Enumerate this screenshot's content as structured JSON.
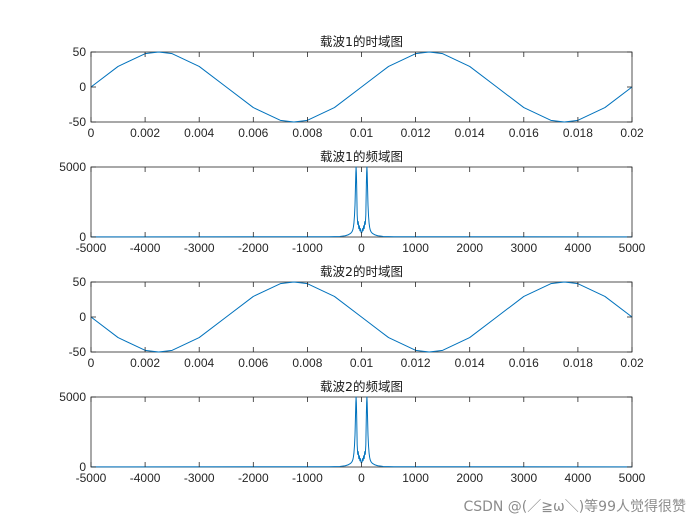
{
  "figure": {
    "background": "#ffffff",
    "line_color": "#0072BD",
    "axis_color": "#262626",
    "watermark": "CSDN @(／≧ω＼)等99人觉得很赞"
  },
  "chart_data": [
    {
      "type": "line",
      "title": "载波1的时域图",
      "xlabel": "",
      "ylabel": "",
      "xlim": [
        0,
        0.02
      ],
      "ylim": [
        -50,
        50
      ],
      "xticks": [
        0,
        0.002,
        0.004,
        0.006,
        0.008,
        0.01,
        0.012,
        0.014,
        0.016,
        0.018,
        0.02
      ],
      "xtick_labels": [
        "0",
        "0.002",
        "0.004",
        "0.006",
        "0.008",
        "0.01",
        "0.012",
        "0.014",
        "0.016",
        "0.018",
        "0.02"
      ],
      "yticks": [
        -50,
        0,
        50
      ],
      "ytick_labels": [
        "-50",
        "0",
        "50"
      ],
      "grid": false,
      "series": [
        {
          "x": [
            0,
            0.001,
            0.002,
            0.0025,
            0.003,
            0.004,
            0.005,
            0.006,
            0.007,
            0.0075,
            0.008,
            0.009,
            0.01,
            0.011,
            0.012,
            0.0125,
            0.013,
            0.014,
            0.015,
            0.016,
            0.017,
            0.0175,
            0.018,
            0.019,
            0.02
          ],
          "y": [
            0,
            29.4,
            47.6,
            50,
            47.6,
            29.4,
            0,
            -29.4,
            -47.6,
            -50,
            -47.6,
            -29.4,
            0,
            29.4,
            47.6,
            50,
            47.6,
            29.4,
            0,
            -29.4,
            -47.6,
            -50,
            -47.6,
            -29.4,
            0
          ]
        }
      ]
    },
    {
      "type": "line",
      "title": "载波1的频域图",
      "xlabel": "",
      "ylabel": "",
      "xlim": [
        -5000,
        5000
      ],
      "ylim": [
        0,
        5000
      ],
      "xticks": [
        -5000,
        -4000,
        -3000,
        -2000,
        -1000,
        0,
        1000,
        2000,
        3000,
        4000,
        5000
      ],
      "xtick_labels": [
        "-5000",
        "-4000",
        "-3000",
        "-2000",
        "-1000",
        "0",
        "1000",
        "2000",
        "3000",
        "4000",
        "5000"
      ],
      "yticks": [
        0,
        5000
      ],
      "ytick_labels": [
        "0",
        "5000"
      ],
      "grid": false,
      "series": [
        {
          "x": [
            -5000,
            -600,
            -400,
            -300,
            -250,
            -200,
            -175,
            -160,
            -150,
            -140,
            -130,
            -120,
            -110,
            -105,
            -100,
            -95,
            -90,
            -80,
            -70,
            -60,
            -50,
            -40,
            -30,
            -20,
            -10,
            0,
            10,
            20,
            30,
            40,
            50,
            60,
            70,
            80,
            90,
            95,
            100,
            105,
            110,
            120,
            130,
            140,
            150,
            160,
            175,
            200,
            250,
            300,
            400,
            600,
            5000
          ],
          "y": [
            10,
            20,
            40,
            90,
            150,
            260,
            380,
            520,
            700,
            1000,
            1500,
            2300,
            3800,
            4600,
            5000,
            4600,
            3800,
            1600,
            900,
            1100,
            600,
            800,
            450,
            600,
            350,
            300,
            350,
            600,
            450,
            800,
            600,
            1100,
            900,
            1600,
            3800,
            4600,
            5000,
            4600,
            3800,
            2300,
            1500,
            1000,
            700,
            520,
            380,
            260,
            150,
            90,
            40,
            20,
            10
          ]
        }
      ]
    },
    {
      "type": "line",
      "title": "载波2的时域图",
      "xlabel": "",
      "ylabel": "",
      "xlim": [
        0,
        0.02
      ],
      "ylim": [
        -50,
        50
      ],
      "xticks": [
        0,
        0.002,
        0.004,
        0.006,
        0.008,
        0.01,
        0.012,
        0.014,
        0.016,
        0.018,
        0.02
      ],
      "xtick_labels": [
        "0",
        "0.002",
        "0.004",
        "0.006",
        "0.008",
        "0.01",
        "0.012",
        "0.014",
        "0.016",
        "0.018",
        "0.02"
      ],
      "yticks": [
        -50,
        0,
        50
      ],
      "ytick_labels": [
        "-50",
        "0",
        "50"
      ],
      "grid": false,
      "series": [
        {
          "x": [
            0,
            0.001,
            0.002,
            0.0025,
            0.003,
            0.004,
            0.005,
            0.006,
            0.007,
            0.0075,
            0.008,
            0.009,
            0.01,
            0.011,
            0.012,
            0.0125,
            0.013,
            0.014,
            0.015,
            0.016,
            0.017,
            0.0175,
            0.018,
            0.019,
            0.02
          ],
          "y": [
            0,
            -29.4,
            -47.6,
            -50,
            -47.6,
            -29.4,
            0,
            29.4,
            47.6,
            50,
            47.6,
            29.4,
            0,
            -29.4,
            -47.6,
            -50,
            -47.6,
            -29.4,
            0,
            29.4,
            47.6,
            50,
            47.6,
            29.4,
            0
          ]
        }
      ]
    },
    {
      "type": "line",
      "title": "载波2的频域图",
      "xlabel": "",
      "ylabel": "",
      "xlim": [
        -5000,
        5000
      ],
      "ylim": [
        0,
        5000
      ],
      "xticks": [
        -5000,
        -4000,
        -3000,
        -2000,
        -1000,
        0,
        1000,
        2000,
        3000,
        4000,
        5000
      ],
      "xtick_labels": [
        "-5000",
        "-4000",
        "-3000",
        "-2000",
        "-1000",
        "0",
        "1000",
        "2000",
        "3000",
        "4000",
        "5000"
      ],
      "yticks": [
        0,
        5000
      ],
      "ytick_labels": [
        "0",
        "5000"
      ],
      "grid": false,
      "series": [
        {
          "x": [
            -5000,
            -600,
            -400,
            -300,
            -250,
            -200,
            -175,
            -160,
            -150,
            -140,
            -130,
            -120,
            -110,
            -105,
            -100,
            -95,
            -90,
            -80,
            -70,
            -60,
            -50,
            -40,
            -30,
            -20,
            -10,
            0,
            10,
            20,
            30,
            40,
            50,
            60,
            70,
            80,
            90,
            95,
            100,
            105,
            110,
            120,
            130,
            140,
            150,
            160,
            175,
            200,
            250,
            300,
            400,
            600,
            5000
          ],
          "y": [
            10,
            20,
            40,
            90,
            150,
            260,
            380,
            520,
            700,
            1000,
            1500,
            2300,
            3800,
            4600,
            5000,
            4600,
            3800,
            1600,
            900,
            1100,
            600,
            800,
            450,
            600,
            350,
            300,
            350,
            600,
            450,
            800,
            600,
            1100,
            900,
            1600,
            3800,
            4600,
            5000,
            4600,
            3800,
            2300,
            1500,
            1000,
            700,
            520,
            380,
            260,
            150,
            90,
            40,
            20,
            10
          ]
        }
      ]
    }
  ]
}
